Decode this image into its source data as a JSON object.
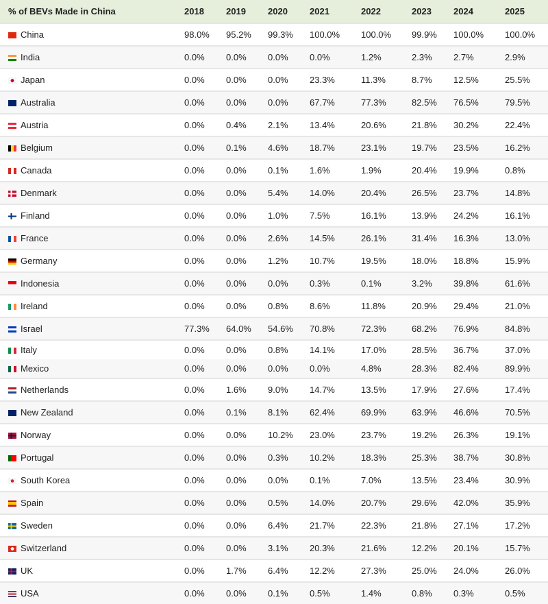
{
  "chart_data": {
    "type": "table",
    "title": "% of BEVs Made in China",
    "columns": [
      "2018",
      "2019",
      "2020",
      "2021",
      "2022",
      "2023",
      "2024",
      "2025"
    ],
    "rows": [
      {
        "country": "China",
        "flag": {
          "dir": "h",
          "colors": [
            "#de2910"
          ]
        },
        "values": [
          "98.0%",
          "95.2%",
          "99.3%",
          "100.0%",
          "100.0%",
          "99.9%",
          "100.0%",
          "100.0%"
        ]
      },
      {
        "country": "India",
        "flag": {
          "dir": "h",
          "colors": [
            "#ff9933",
            "#ffffff",
            "#138808"
          ]
        },
        "values": [
          "0.0%",
          "0.0%",
          "0.0%",
          "0.0%",
          "1.2%",
          "2.3%",
          "2.7%",
          "2.9%"
        ]
      },
      {
        "country": "Japan",
        "flag": {
          "dir": "dot",
          "colors": [
            "#f5f5f5",
            "#bc002d"
          ]
        },
        "values": [
          "0.0%",
          "0.0%",
          "0.0%",
          "23.3%",
          "11.3%",
          "8.7%",
          "12.5%",
          "25.5%"
        ]
      },
      {
        "country": "Australia",
        "flag": {
          "dir": "h",
          "colors": [
            "#012169"
          ]
        },
        "values": [
          "0.0%",
          "0.0%",
          "0.0%",
          "67.7%",
          "77.3%",
          "82.5%",
          "76.5%",
          "79.5%"
        ]
      },
      {
        "country": "Austria",
        "flag": {
          "dir": "h",
          "colors": [
            "#ed2939",
            "#ffffff",
            "#ed2939"
          ]
        },
        "values": [
          "0.0%",
          "0.4%",
          "2.1%",
          "13.4%",
          "20.6%",
          "21.8%",
          "30.2%",
          "22.4%"
        ]
      },
      {
        "country": "Belgium",
        "flag": {
          "dir": "v",
          "colors": [
            "#000000",
            "#fdda24",
            "#ef3340"
          ]
        },
        "values": [
          "0.0%",
          "0.1%",
          "4.6%",
          "18.7%",
          "23.1%",
          "19.7%",
          "23.5%",
          "16.2%"
        ]
      },
      {
        "country": "Canada",
        "flag": {
          "dir": "v",
          "colors": [
            "#d52b1e",
            "#ffffff",
            "#d52b1e"
          ]
        },
        "values": [
          "0.0%",
          "0.0%",
          "0.1%",
          "1.6%",
          "1.9%",
          "20.4%",
          "19.9%",
          "0.8%"
        ]
      },
      {
        "country": "Denmark",
        "flag": {
          "dir": "cross",
          "colors": [
            "#c8102e",
            "#ffffff"
          ]
        },
        "values": [
          "0.0%",
          "0.0%",
          "5.4%",
          "14.0%",
          "20.4%",
          "26.5%",
          "23.7%",
          "14.8%"
        ]
      },
      {
        "country": "Finland",
        "flag": {
          "dir": "cross",
          "colors": [
            "#ffffff",
            "#003580"
          ]
        },
        "values": [
          "0.0%",
          "0.0%",
          "1.0%",
          "7.5%",
          "16.1%",
          "13.9%",
          "24.2%",
          "16.1%"
        ]
      },
      {
        "country": "France",
        "flag": {
          "dir": "v",
          "colors": [
            "#0055a4",
            "#ffffff",
            "#ef4135"
          ]
        },
        "values": [
          "0.0%",
          "0.0%",
          "2.6%",
          "14.5%",
          "26.1%",
          "31.4%",
          "16.3%",
          "13.0%"
        ]
      },
      {
        "country": "Germany",
        "flag": {
          "dir": "h",
          "colors": [
            "#000000",
            "#dd0000",
            "#ffce00"
          ]
        },
        "values": [
          "0.0%",
          "0.0%",
          "1.2%",
          "10.7%",
          "19.5%",
          "18.0%",
          "18.8%",
          "15.9%"
        ]
      },
      {
        "country": "Indonesia",
        "flag": {
          "dir": "h",
          "colors": [
            "#e70011",
            "#f5f5f5"
          ]
        },
        "values": [
          "0.0%",
          "0.0%",
          "0.0%",
          "0.3%",
          "0.1%",
          "3.2%",
          "39.8%",
          "61.6%"
        ]
      },
      {
        "country": "Ireland",
        "flag": {
          "dir": "v",
          "colors": [
            "#169b62",
            "#ffffff",
            "#ff883e"
          ]
        },
        "values": [
          "0.0%",
          "0.0%",
          "0.8%",
          "8.6%",
          "11.8%",
          "20.9%",
          "29.4%",
          "21.0%"
        ]
      },
      {
        "country": "Israel",
        "flag": {
          "dir": "h",
          "colors": [
            "#0038b8",
            "#ffffff",
            "#0038b8"
          ]
        },
        "values": [
          "77.3%",
          "64.0%",
          "54.6%",
          "70.8%",
          "72.3%",
          "68.2%",
          "76.9%",
          "84.8%"
        ]
      },
      {
        "country": "Italy",
        "flag": {
          "dir": "v",
          "colors": [
            "#009246",
            "#ffffff",
            "#ce2b37"
          ]
        },
        "values": [
          "0.0%",
          "0.0%",
          "0.8%",
          "14.1%",
          "17.0%",
          "28.5%",
          "36.7%",
          "37.0%"
        ]
      },
      {
        "country": "Mexico",
        "flag": {
          "dir": "v",
          "colors": [
            "#006847",
            "#ffffff",
            "#ce1126"
          ]
        },
        "values": [
          "0.0%",
          "0.0%",
          "0.0%",
          "0.0%",
          "4.8%",
          "28.3%",
          "82.4%",
          "89.9%"
        ]
      },
      {
        "country": "Netherlands",
        "flag": {
          "dir": "h",
          "colors": [
            "#ae1c28",
            "#ffffff",
            "#21468b"
          ]
        },
        "values": [
          "0.0%",
          "1.6%",
          "9.0%",
          "14.7%",
          "13.5%",
          "17.9%",
          "27.6%",
          "17.4%"
        ]
      },
      {
        "country": "New Zealand",
        "flag": {
          "dir": "h",
          "colors": [
            "#012169"
          ]
        },
        "values": [
          "0.0%",
          "0.1%",
          "8.1%",
          "62.4%",
          "69.9%",
          "63.9%",
          "46.6%",
          "70.5%"
        ]
      },
      {
        "country": "Norway",
        "flag": {
          "dir": "cross",
          "colors": [
            "#ba0c2f",
            "#00205b"
          ]
        },
        "values": [
          "0.0%",
          "0.0%",
          "10.2%",
          "23.0%",
          "23.7%",
          "19.2%",
          "26.3%",
          "19.1%"
        ]
      },
      {
        "country": "Portugal",
        "flag": {
          "dir": "v",
          "colors": [
            "#006600",
            "#ff0000",
            "#ff0000"
          ]
        },
        "values": [
          "0.0%",
          "0.0%",
          "0.3%",
          "10.2%",
          "18.3%",
          "25.3%",
          "38.7%",
          "30.8%"
        ]
      },
      {
        "country": "South Korea",
        "flag": {
          "dir": "dot",
          "colors": [
            "#f5f5f5",
            "#cd2e3a"
          ]
        },
        "values": [
          "0.0%",
          "0.0%",
          "0.0%",
          "0.1%",
          "7.0%",
          "13.5%",
          "23.4%",
          "30.9%"
        ]
      },
      {
        "country": "Spain",
        "flag": {
          "dir": "h",
          "colors": [
            "#c60b1e",
            "#ffc400",
            "#ffc400",
            "#c60b1e"
          ]
        },
        "values": [
          "0.0%",
          "0.0%",
          "0.5%",
          "14.0%",
          "20.7%",
          "29.6%",
          "42.0%",
          "35.9%"
        ]
      },
      {
        "country": "Sweden",
        "flag": {
          "dir": "cross",
          "colors": [
            "#006aa7",
            "#fecc00"
          ]
        },
        "values": [
          "0.0%",
          "0.0%",
          "6.4%",
          "21.7%",
          "22.3%",
          "21.8%",
          "27.1%",
          "17.2%"
        ]
      },
      {
        "country": "Switzerland",
        "flag": {
          "dir": "dot",
          "colors": [
            "#da291c",
            "#ffffff"
          ]
        },
        "values": [
          "0.0%",
          "0.0%",
          "3.1%",
          "20.3%",
          "21.6%",
          "12.2%",
          "20.1%",
          "15.7%"
        ]
      },
      {
        "country": "UK",
        "flag": {
          "dir": "cross",
          "colors": [
            "#012169",
            "#c8102e"
          ]
        },
        "values": [
          "0.0%",
          "1.7%",
          "6.4%",
          "12.2%",
          "27.3%",
          "25.0%",
          "24.0%",
          "26.0%"
        ]
      },
      {
        "country": "USA",
        "flag": {
          "dir": "h",
          "colors": [
            "#b22234",
            "#ffffff",
            "#b22234",
            "#ffffff",
            "#3c3b6e"
          ]
        },
        "values": [
          "0.0%",
          "0.0%",
          "0.1%",
          "0.5%",
          "1.4%",
          "0.8%",
          "0.3%",
          "0.5%"
        ]
      }
    ]
  }
}
